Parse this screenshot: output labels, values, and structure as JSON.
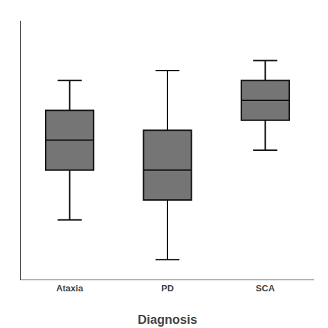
{
  "chart_data": {
    "type": "box",
    "xlabel": "Diagnosis",
    "categories": [
      "Ataxia",
      "PD",
      "SCA"
    ],
    "whisker_low": [
      6,
      2,
      13
    ],
    "q1": [
      11,
      8,
      16
    ],
    "median": [
      14,
      11,
      18
    ],
    "q3": [
      17,
      15,
      20
    ],
    "whisker_high": [
      20,
      21,
      22
    ],
    "color": "#757575",
    "ylim": [
      0,
      26
    ],
    "grid": false,
    "tick_labels": "x"
  }
}
